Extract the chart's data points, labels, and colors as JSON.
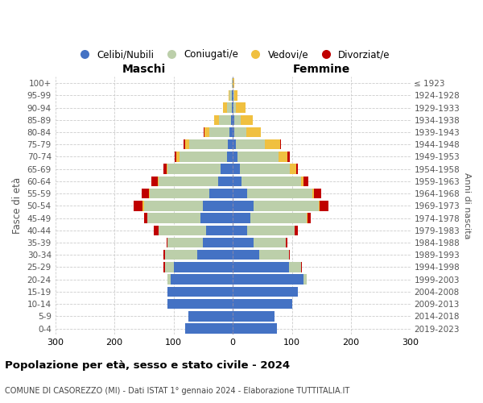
{
  "age_groups": [
    "0-4",
    "5-9",
    "10-14",
    "15-19",
    "20-24",
    "25-29",
    "30-34",
    "35-39",
    "40-44",
    "45-49",
    "50-54",
    "55-59",
    "60-64",
    "65-69",
    "70-74",
    "75-79",
    "80-84",
    "85-89",
    "90-94",
    "95-99",
    "100+"
  ],
  "birth_years": [
    "2019-2023",
    "2014-2018",
    "2009-2013",
    "2004-2008",
    "1999-2003",
    "1994-1998",
    "1989-1993",
    "1984-1988",
    "1979-1983",
    "1974-1978",
    "1969-1973",
    "1964-1968",
    "1959-1963",
    "1954-1958",
    "1949-1953",
    "1944-1948",
    "1939-1943",
    "1934-1938",
    "1929-1933",
    "1924-1928",
    "≤ 1923"
  ],
  "maschi": {
    "celibi": [
      80,
      75,
      110,
      110,
      105,
      100,
      60,
      50,
      45,
      55,
      50,
      40,
      25,
      20,
      10,
      8,
      5,
      3,
      2,
      1,
      0
    ],
    "coniugati": [
      0,
      0,
      0,
      0,
      5,
      15,
      55,
      60,
      80,
      90,
      100,
      100,
      100,
      90,
      80,
      65,
      35,
      20,
      8,
      4,
      1
    ],
    "vedovi": [
      0,
      0,
      0,
      0,
      0,
      0,
      0,
      0,
      0,
      0,
      2,
      2,
      2,
      2,
      5,
      8,
      8,
      8,
      6,
      2,
      0
    ],
    "divorziati": [
      0,
      0,
      0,
      0,
      0,
      2,
      2,
      2,
      8,
      5,
      15,
      12,
      10,
      5,
      3,
      2,
      1,
      0,
      0,
      0,
      0
    ]
  },
  "femmine": {
    "nubili": [
      75,
      70,
      100,
      110,
      120,
      95,
      45,
      35,
      25,
      30,
      35,
      25,
      15,
      12,
      8,
      5,
      3,
      2,
      1,
      1,
      0
    ],
    "coniugate": [
      0,
      0,
      0,
      0,
      5,
      20,
      50,
      55,
      80,
      95,
      110,
      110,
      100,
      85,
      70,
      50,
      20,
      12,
      5,
      2,
      0
    ],
    "vedove": [
      0,
      0,
      0,
      0,
      0,
      0,
      0,
      0,
      0,
      2,
      2,
      2,
      5,
      10,
      15,
      25,
      25,
      20,
      15,
      5,
      2
    ],
    "divorziate": [
      0,
      0,
      0,
      0,
      0,
      2,
      2,
      2,
      5,
      5,
      15,
      12,
      8,
      3,
      3,
      1,
      0,
      0,
      0,
      0,
      0
    ]
  },
  "colors": {
    "celibi_nubili": "#4472C4",
    "coniugati": "#BCCFAA",
    "vedovi": "#F0C040",
    "divorziati": "#C00000"
  },
  "title": "Popolazione per età, sesso e stato civile - 2024",
  "subtitle": "COMUNE DI CASOREZZO (MI) - Dati ISTAT 1° gennaio 2024 - Elaborazione TUTTITALIA.IT",
  "xlabel_left": "Maschi",
  "xlabel_right": "Femmine",
  "ylabel": "Fasce di età",
  "right_ylabel": "Anni di nascita",
  "xlim": 300,
  "background_color": "#ffffff",
  "grid_color": "#cccccc"
}
